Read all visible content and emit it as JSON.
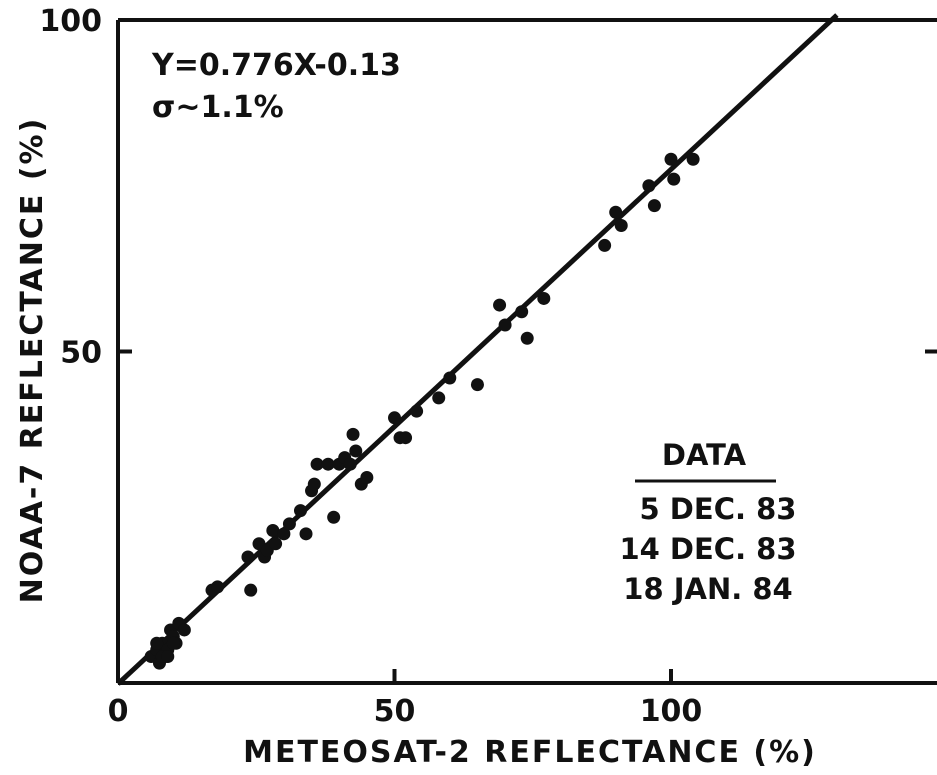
{
  "chart_data": {
    "type": "scatter",
    "title": "",
    "xlabel": "METEOSAT-2  REFLECTANCE (%)",
    "ylabel": "NOAA-7  REFLECTANCE (%)",
    "xlim": [
      0,
      148
    ],
    "ylim": [
      0,
      100
    ],
    "x_ticks": [
      0,
      50,
      100
    ],
    "y_ticks": [
      50,
      100
    ],
    "grid": false,
    "annotations": [
      "Y=0.776X-0.13",
      "σ~1.1%"
    ],
    "fit": {
      "slope": 0.776,
      "intercept": -0.13,
      "x_range": [
        0,
        130
      ]
    },
    "legend": {
      "title": "DATA",
      "entries": [
        "5 DEC. 83",
        "14 DEC. 83",
        "18 JAN. 84"
      ],
      "placement": "lower-right"
    },
    "series": [
      {
        "x": [
          6,
          7,
          7.5,
          8,
          8.5,
          9,
          9.5,
          10,
          10.5,
          11,
          8,
          9,
          7,
          10,
          12,
          17,
          18,
          23.5,
          24,
          25.5,
          26.5,
          27,
          28,
          28.5,
          30,
          31,
          33,
          34,
          35,
          35.5,
          36,
          38,
          39,
          40,
          41,
          42,
          42.5,
          43,
          44,
          45,
          50,
          51,
          52,
          54,
          58,
          60,
          65,
          69,
          70,
          73,
          74,
          77,
          88,
          90,
          91,
          96,
          97,
          100,
          100.5,
          104
        ],
        "y": [
          4,
          5,
          3,
          6,
          4,
          5,
          8,
          7,
          6,
          9,
          4,
          4,
          6,
          6,
          8,
          14,
          14.5,
          19,
          14,
          21,
          19,
          20,
          23,
          21,
          22.5,
          24,
          26,
          22.5,
          29,
          30,
          33,
          33,
          25,
          33,
          34,
          33,
          37.5,
          35,
          30,
          31,
          40,
          37,
          37,
          41,
          43,
          46,
          45,
          57,
          54,
          56,
          52,
          58,
          66,
          71,
          69,
          75,
          72,
          79,
          76,
          79
        ]
      }
    ]
  }
}
